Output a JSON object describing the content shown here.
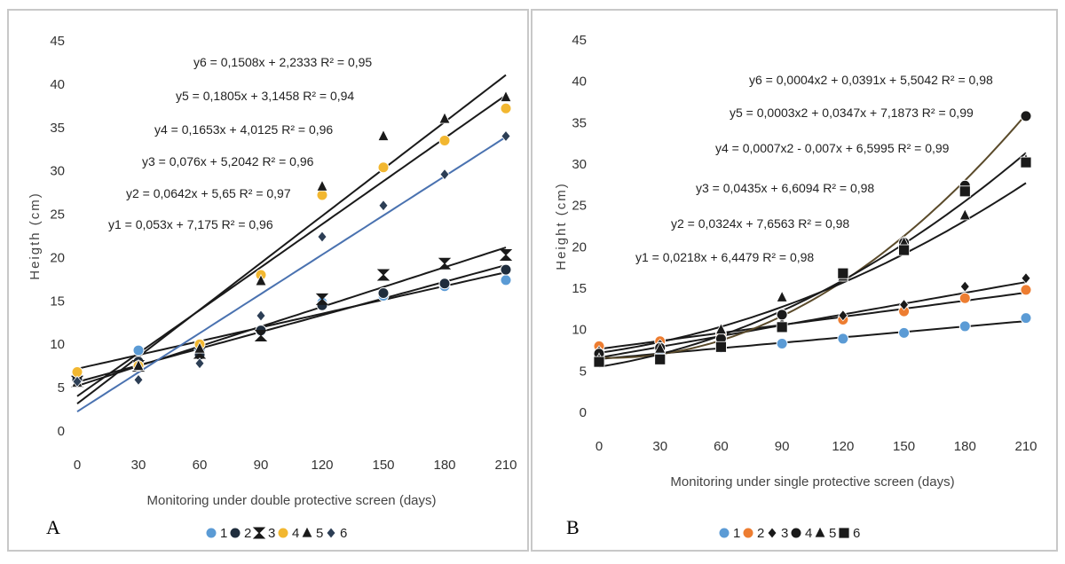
{
  "chart_data": [
    {
      "type": "scatter",
      "panel_label": "A",
      "xlabel": "Monitoring under double protective screen (days)",
      "ylabel": "Heigth (cm)",
      "xlim": [
        0,
        210
      ],
      "ylim": [
        0,
        45
      ],
      "x_ticks": [
        "0",
        "30",
        "60",
        "90",
        "120",
        "150",
        "180",
        "210"
      ],
      "y_ticks": [
        "0",
        "5",
        "10",
        "15",
        "20",
        "25",
        "30",
        "35",
        "40",
        "45"
      ],
      "legend_position": "bottom",
      "x": [
        0,
        30,
        60,
        90,
        120,
        150,
        180,
        210
      ],
      "series": [
        {
          "name": "1",
          "marker": "circle",
          "color": "#5b9bd5",
          "values": [
            6.3,
            9.3,
            9.3,
            11.5,
            14.8,
            15.6,
            16.7,
            17.4
          ],
          "trendline": {
            "type": "linear",
            "a": 0.053,
            "b": 7.175
          }
        },
        {
          "name": "2",
          "marker": "circle",
          "color": "#1f2d3d",
          "values": [
            5.9,
            8.0,
            8.8,
            11.6,
            14.5,
            15.9,
            17.0,
            18.6
          ],
          "trendline": {
            "type": "linear",
            "a": 0.0642,
            "b": 5.65
          }
        },
        {
          "name": "3",
          "marker": "hourglass",
          "color": "#1a1a1a",
          "values": [
            5.7,
            7.5,
            9.0,
            11.0,
            15.2,
            18.0,
            19.3,
            20.3
          ],
          "trendline": {
            "type": "linear",
            "a": 0.076,
            "b": 5.2042
          }
        },
        {
          "name": "4",
          "marker": "circle",
          "color": "#f2b730",
          "values": [
            6.8,
            7.5,
            10.0,
            18.0,
            27.2,
            30.4,
            33.5,
            37.2
          ],
          "trendline": {
            "type": "linear",
            "a": 0.1653,
            "b": 4.0125
          }
        },
        {
          "name": "5",
          "marker": "triangle",
          "color": "#1a1a1a",
          "values": [
            5.6,
            7.5,
            9.5,
            17.3,
            28.2,
            34.0,
            36.0,
            38.5
          ],
          "trendline": {
            "type": "linear",
            "a": 0.1805,
            "b": 3.1458
          }
        },
        {
          "name": "6",
          "marker": "diamond",
          "color": "#2c3e55",
          "values": [
            5.7,
            5.9,
            7.8,
            13.3,
            22.4,
            26.0,
            29.6,
            34.0
          ],
          "trendline": {
            "type": "linear",
            "a": 0.1508,
            "b": 2.2333
          }
        }
      ],
      "equations": [
        "y6 = 0,1508x + 2,2333 R² = 0,95",
        "y5 = 0,1805x + 3,1458  R² = 0,94",
        "y4 = 0,1653x + 4,0125 R² = 0,96",
        "y3 = 0,076x + 5,2042 R² = 0,96",
        "y2 = 0,0642x + 5,65 R² = 0,97",
        "y1 = 0,053x + 7,175 R² = 0,96"
      ]
    },
    {
      "type": "scatter",
      "panel_label": "B",
      "xlabel": "Monitoring under single protective screen (days)",
      "ylabel": "Height (cm)",
      "xlim": [
        0,
        210
      ],
      "ylim": [
        0,
        45
      ],
      "x_ticks": [
        "0",
        "30",
        "60",
        "90",
        "120",
        "150",
        "180",
        "210"
      ],
      "y_ticks": [
        "0",
        "5",
        "10",
        "15",
        "20",
        "25",
        "30",
        "35",
        "40",
        "45"
      ],
      "legend_position": "bottom",
      "x": [
        0,
        30,
        60,
        90,
        120,
        150,
        180,
        210
      ],
      "series": [
        {
          "name": "1",
          "marker": "circle",
          "color": "#5b9bd5",
          "values": [
            6.6,
            7.5,
            7.8,
            8.3,
            8.9,
            9.6,
            10.4,
            11.4
          ],
          "trendline": {
            "type": "linear",
            "a": 0.0218,
            "b": 6.4479
          }
        },
        {
          "name": "2",
          "marker": "circle",
          "color": "#ed7d31",
          "values": [
            8.0,
            8.6,
            9.5,
            10.3,
            11.2,
            12.2,
            13.8,
            14.8
          ],
          "trendline": {
            "type": "linear",
            "a": 0.0324,
            "b": 7.6563
          }
        },
        {
          "name": "3",
          "marker": "diamond",
          "color": "#1a1a1a",
          "values": [
            7.4,
            8.2,
            9.3,
            10.7,
            11.7,
            13.0,
            15.2,
            16.2
          ],
          "trendline": {
            "type": "linear",
            "a": 0.0435,
            "b": 6.6094
          }
        },
        {
          "name": "4",
          "marker": "circle",
          "color": "#1a1a1a",
          "values": [
            7.1,
            7.8,
            8.9,
            11.8,
            16.5,
            20.5,
            27.4,
            35.8
          ],
          "trendline": {
            "type": "poly2",
            "c2": 0.0007,
            "c1": -0.007,
            "c0": 6.5995
          }
        },
        {
          "name": "5",
          "marker": "triangle",
          "color": "#1a1a1a",
          "values": [
            6.4,
            7.7,
            10.0,
            13.9,
            16.4,
            20.5,
            23.8,
            30.5
          ],
          "trendline": {
            "type": "poly2",
            "c2": 0.0003,
            "c1": 0.0347,
            "c0": 7.1873
          }
        },
        {
          "name": "6",
          "marker": "square",
          "color": "#1a1a1a",
          "values": [
            6.1,
            6.4,
            7.9,
            10.3,
            16.8,
            19.6,
            26.7,
            30.2
          ],
          "trendline": {
            "type": "poly2",
            "c2": 0.0004,
            "c1": 0.0391,
            "c0": 5.5042
          }
        }
      ],
      "equations": [
        "y6 = 0,0004x2 + 0,0391x + 5,5042 R² = 0,98",
        "y5 = 0,0003x2 + 0,0347x + 7,1873  R² = 0,99",
        "y4 = 0,0007x2 - 0,007x + 6,5995 R² = 0,99",
        "y3 = 0,0435x + 6,6094 R² = 0,98",
        "y2 = 0,0324x + 7,6563  R² = 0,98",
        "y1 = 0,0218x + 6,4479  R² = 0,98"
      ]
    }
  ]
}
